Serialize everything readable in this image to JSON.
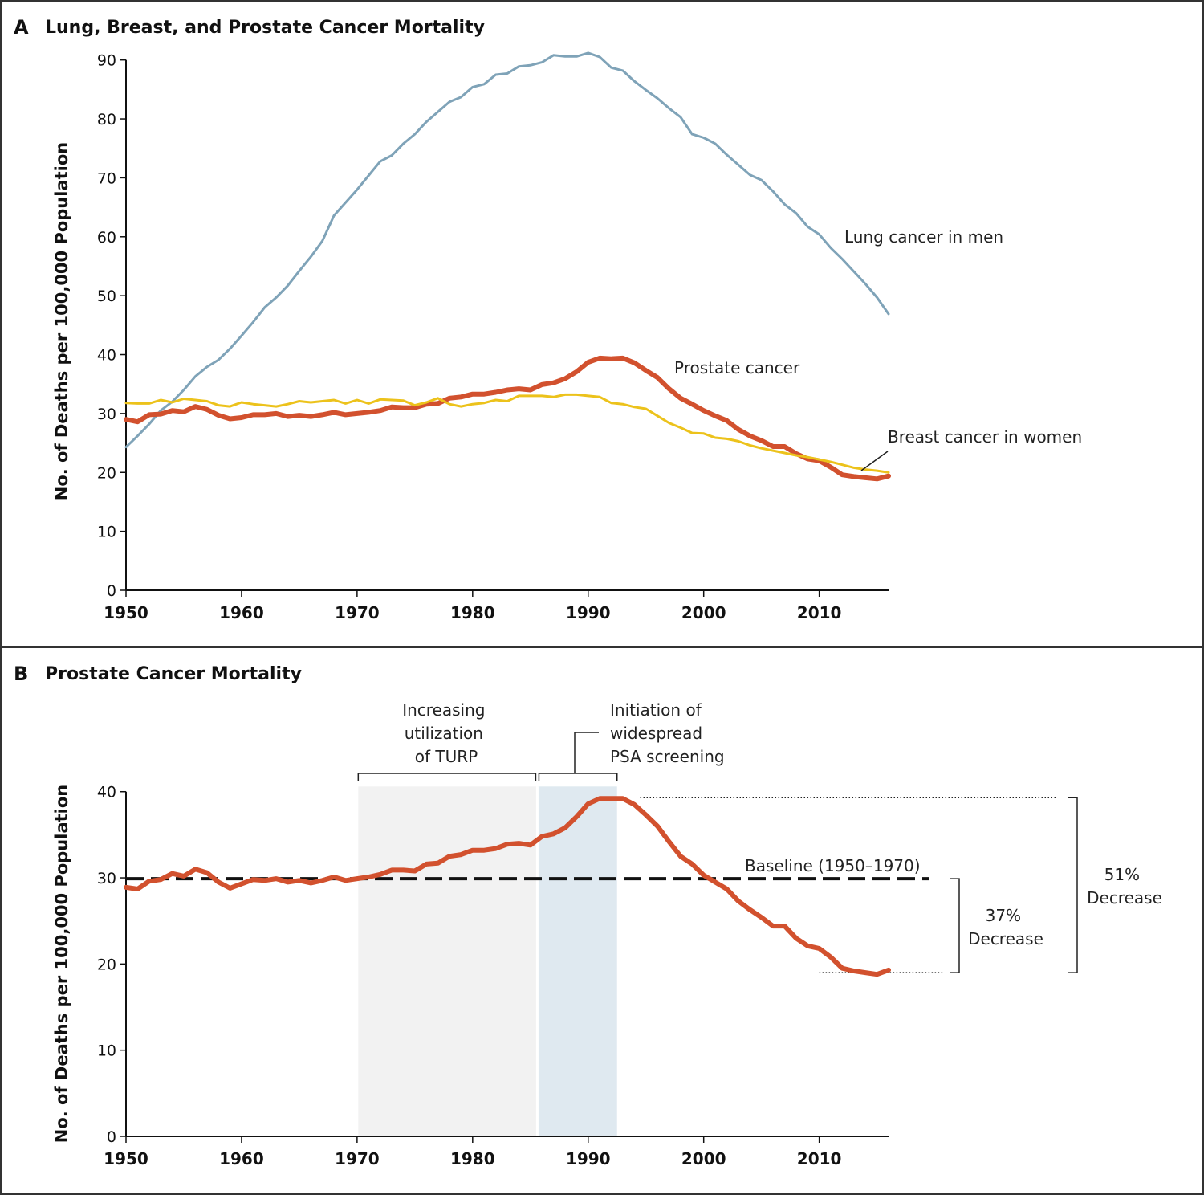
{
  "chart_data": [
    {
      "type": "line",
      "panel_letter": "A",
      "title": "Lung, Breast, and Prostate Cancer Mortality",
      "xlabel": "",
      "ylabel": "No. of Deaths per 100,000 Population",
      "xlim": [
        1950,
        2016
      ],
      "ylim": [
        0,
        92
      ],
      "x_ticks": [
        1950,
        1960,
        1970,
        1980,
        1990,
        2000,
        2010
      ],
      "y_ticks": [
        0,
        10,
        20,
        30,
        40,
        50,
        60,
        70,
        80,
        90
      ],
      "x_start": 1950,
      "series": [
        {
          "name": "Lung cancer in men",
          "color": "#7fa3b8",
          "values": [
            24.3,
            26.2,
            28.2,
            30.5,
            32.0,
            34.0,
            36.3,
            37.9,
            39.1,
            41.0,
            43.2,
            45.5,
            48.0,
            49.7,
            51.7,
            54.2,
            56.6,
            59.3,
            63.6,
            65.8,
            68.0,
            70.4,
            72.8,
            73.8,
            75.8,
            77.4,
            79.5,
            81.2,
            82.9,
            83.7,
            85.4,
            85.9,
            87.5,
            87.7,
            88.9,
            89.1,
            89.6,
            90.8,
            90.6,
            90.6,
            91.2,
            90.5,
            88.7,
            88.2,
            86.4,
            84.9,
            83.5,
            81.8,
            80.3,
            77.4,
            76.8,
            75.8,
            73.9,
            72.2,
            70.5,
            69.6,
            67.7,
            65.5,
            64.0,
            61.7,
            60.4,
            58.1,
            56.2,
            54.1,
            52.0,
            49.7,
            46.9
          ]
        },
        {
          "name": "Prostate cancer",
          "color": "#d2512e",
          "values": [
            29.0,
            28.6,
            29.8,
            29.9,
            30.5,
            30.3,
            31.2,
            30.7,
            29.7,
            29.1,
            29.3,
            29.8,
            29.8,
            30.0,
            29.5,
            29.7,
            29.5,
            29.8,
            30.2,
            29.8,
            30.0,
            30.2,
            30.5,
            31.1,
            31.0,
            31.0,
            31.6,
            31.7,
            32.6,
            32.8,
            33.3,
            33.3,
            33.6,
            34.0,
            34.2,
            34.0,
            34.9,
            35.2,
            35.9,
            37.1,
            38.7,
            39.4,
            39.3,
            39.4,
            38.6,
            37.3,
            36.1,
            34.2,
            32.6,
            31.6,
            30.5,
            29.6,
            28.8,
            27.3,
            26.2,
            25.4,
            24.4,
            24.4,
            23.2,
            22.3,
            22.0,
            20.9,
            19.6,
            19.3,
            19.1,
            18.9,
            19.4
          ]
        },
        {
          "name": "Breast cancer in women",
          "color": "#ecc21b",
          "values": [
            31.8,
            31.7,
            31.7,
            32.3,
            31.9,
            32.5,
            32.3,
            32.1,
            31.4,
            31.2,
            31.9,
            31.6,
            31.4,
            31.2,
            31.6,
            32.1,
            31.9,
            32.1,
            32.3,
            31.7,
            32.3,
            31.7,
            32.4,
            32.3,
            32.2,
            31.4,
            31.9,
            32.6,
            31.6,
            31.2,
            31.6,
            31.8,
            32.3,
            32.1,
            33.0,
            33.0,
            33.0,
            32.8,
            33.2,
            33.2,
            33.0,
            32.8,
            31.8,
            31.6,
            31.1,
            30.8,
            29.6,
            28.4,
            27.6,
            26.7,
            26.6,
            25.9,
            25.7,
            25.3,
            24.6,
            24.1,
            23.7,
            23.3,
            22.9,
            22.6,
            22.2,
            21.8,
            21.3,
            20.8,
            20.5,
            20.3,
            20.0
          ]
        }
      ],
      "annotations": [
        "Lung cancer in men",
        "Prostate cancer",
        "Breast cancer in women"
      ]
    },
    {
      "type": "line",
      "panel_letter": "B",
      "title": "Prostate Cancer Mortality",
      "xlabel": "",
      "ylabel": "No. of Deaths per 100,000 Population",
      "xlim": [
        1950,
        2016
      ],
      "ylim": [
        0,
        41
      ],
      "x_ticks": [
        1950,
        1960,
        1970,
        1980,
        1990,
        2000,
        2010
      ],
      "y_ticks": [
        0,
        10,
        20,
        30,
        40
      ],
      "x_start": 1950,
      "series": [
        {
          "name": "Prostate cancer",
          "color": "#d2512e",
          "values": [
            28.9,
            28.7,
            29.6,
            29.8,
            30.5,
            30.2,
            31.0,
            30.6,
            29.5,
            28.8,
            29.3,
            29.8,
            29.7,
            29.9,
            29.5,
            29.7,
            29.4,
            29.7,
            30.1,
            29.7,
            29.9,
            30.1,
            30.4,
            30.9,
            30.9,
            30.8,
            31.6,
            31.7,
            32.5,
            32.7,
            33.2,
            33.2,
            33.4,
            33.9,
            34.0,
            33.8,
            34.8,
            35.1,
            35.8,
            37.1,
            38.6,
            39.2,
            39.2,
            39.2,
            38.5,
            37.3,
            36.0,
            34.2,
            32.5,
            31.6,
            30.3,
            29.5,
            28.7,
            27.3,
            26.3,
            25.4,
            24.4,
            24.4,
            23.0,
            22.1,
            21.8,
            20.8,
            19.5,
            19.2,
            19.0,
            18.8,
            19.3
          ]
        }
      ],
      "baseline": {
        "label": "Baseline (1950–1970)",
        "value": 29.9
      },
      "shaded_periods": [
        {
          "label_lines": [
            "Increasing",
            "utilization",
            "of TURP"
          ],
          "start": 1970.1,
          "end": 1985.6,
          "color": "#f2f2f2"
        },
        {
          "label_lines": [
            "Initiation of",
            "widespread",
            "PSA screening"
          ],
          "start": 1985.6,
          "end": 1992.5,
          "color": "#dfe9f0"
        }
      ],
      "decrease_annotations": [
        {
          "label_lines": [
            "37%",
            "Decrease"
          ],
          "from": 29.9,
          "to": 19.0
        },
        {
          "label_lines": [
            "51%",
            "Decrease"
          ],
          "from": 39.3,
          "to": 19.0
        }
      ]
    }
  ]
}
